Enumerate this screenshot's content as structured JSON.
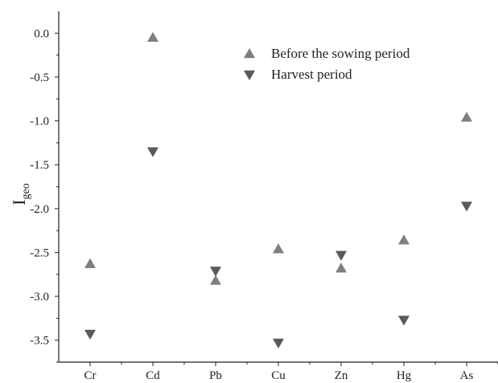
{
  "chart_data": {
    "type": "scatter",
    "categories": [
      "Cr",
      "Cd",
      "Pb",
      "Cu",
      "Zn",
      "Hg",
      "As"
    ],
    "series": [
      {
        "name": "Before the sowing period",
        "marker": "triangle-up",
        "color": "#7f7f7f",
        "values": [
          -2.63,
          -0.05,
          -2.82,
          -2.46,
          -2.68,
          -2.36,
          -0.96
        ]
      },
      {
        "name": "Harvest period",
        "marker": "triangle-down",
        "color": "#5a5a5a",
        "values": [
          -3.43,
          -1.35,
          -2.71,
          -3.53,
          -2.53,
          -3.27,
          -1.97
        ]
      }
    ],
    "ylabel": {
      "main": "I",
      "sub": "geo"
    },
    "xlabel": "",
    "ylim": [
      -3.75,
      0.25
    ],
    "yticks": [
      0.0,
      -0.5,
      -1.0,
      -1.5,
      -2.0,
      -2.5,
      -3.0,
      -3.5
    ],
    "ytick_labels": [
      "0.0",
      "-0.5",
      "-1.0",
      "-1.5",
      "-2.0",
      "-2.5",
      "-3.0",
      "-3.5"
    ],
    "grid": false,
    "legend_position": "top-right"
  }
}
